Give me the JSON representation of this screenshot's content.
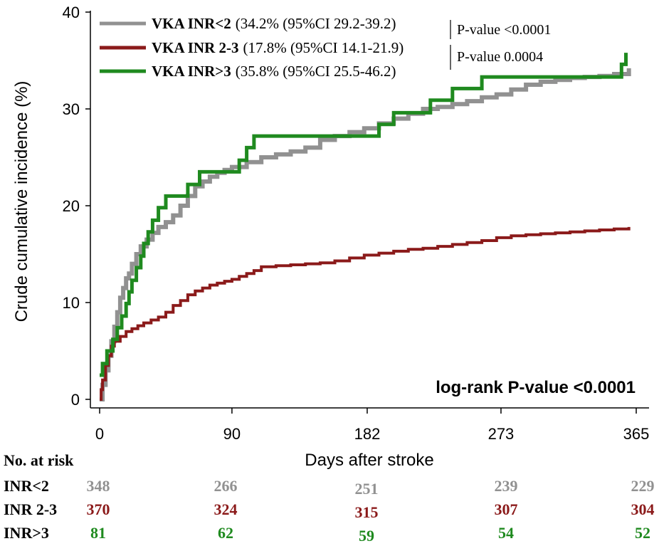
{
  "chart_data": {
    "type": "line",
    "step": true,
    "xlabel": "Days after stroke",
    "ylabel": "Crude cumulative incidence (%)",
    "xlim": [
      0,
      365
    ],
    "ylim": [
      0,
      40
    ],
    "x_ticks": [
      0,
      90,
      182,
      273,
      365
    ],
    "y_ticks": [
      0,
      10,
      20,
      30,
      40
    ],
    "annotation": "log-rank P-value <0.0001",
    "legend_position": "top-left",
    "series": [
      {
        "name": "VKA INR<2",
        "detail": "(34.2% (95%CI 29.2-39.2)",
        "color": "#919191",
        "x": [
          0,
          2,
          4,
          6,
          8,
          10,
          12,
          14,
          16,
          18,
          20,
          22,
          25,
          28,
          32,
          36,
          40,
          45,
          50,
          55,
          60,
          65,
          70,
          75,
          80,
          85,
          90,
          100,
          110,
          120,
          130,
          140,
          150,
          160,
          170,
          180,
          190,
          200,
          210,
          220,
          230,
          240,
          250,
          260,
          270,
          280,
          290,
          300,
          310,
          320,
          330,
          340,
          350,
          360
        ],
        "values": [
          0,
          1.5,
          3,
          4.5,
          6,
          7.5,
          9,
          10.5,
          11.5,
          12.5,
          13,
          14,
          15,
          15.8,
          16.5,
          17.2,
          17.8,
          18.3,
          19,
          20,
          21,
          22,
          22.5,
          23,
          23.4,
          23.7,
          24,
          24.5,
          25,
          25.3,
          25.6,
          26,
          26.8,
          27.2,
          27.6,
          28,
          28.5,
          29,
          29.5,
          30,
          30.2,
          30.5,
          30.8,
          31.2,
          31.5,
          32,
          32.5,
          32.8,
          33,
          33.2,
          33.3,
          33.4,
          33.6,
          34.2
        ]
      },
      {
        "name": "VKA INR 2-3",
        "detail": "(17.8% (95%CI 14.1-21.9)",
        "color": "#8b1a1a",
        "x": [
          0,
          1,
          2,
          4,
          6,
          8,
          10,
          14,
          18,
          22,
          26,
          30,
          35,
          40,
          45,
          50,
          55,
          60,
          65,
          70,
          75,
          80,
          85,
          90,
          95,
          100,
          105,
          110,
          120,
          130,
          140,
          150,
          160,
          170,
          180,
          190,
          200,
          210,
          220,
          230,
          240,
          250,
          260,
          270,
          280,
          290,
          300,
          310,
          320,
          330,
          340,
          350,
          360
        ],
        "values": [
          0,
          1,
          2,
          3.5,
          4.5,
          5.5,
          6,
          6.5,
          7,
          7.3,
          7.6,
          7.9,
          8.2,
          8.5,
          9,
          9.7,
          10.2,
          10.8,
          11.2,
          11.5,
          11.8,
          12,
          12.2,
          12.4,
          12.7,
          13,
          13.3,
          13.7,
          13.8,
          13.9,
          14,
          14.1,
          14.3,
          14.6,
          14.9,
          15.1,
          15.3,
          15.5,
          15.6,
          15.8,
          16,
          16.2,
          16.4,
          16.7,
          16.9,
          17,
          17.1,
          17.2,
          17.3,
          17.4,
          17.5,
          17.6,
          17.8
        ]
      },
      {
        "name": "VKA INR>3",
        "detail": "(35.8% (95%CI 25.5-46.2)",
        "color": "#1f8a1f",
        "x": [
          0,
          2,
          5,
          9,
          12,
          15,
          18,
          20,
          22,
          25,
          28,
          30,
          33,
          36,
          40,
          45,
          52,
          60,
          68,
          75,
          85,
          95,
          100,
          105,
          110,
          115,
          140,
          160,
          180,
          190,
          200,
          205,
          215,
          225,
          240,
          250,
          260,
          280,
          300,
          320,
          340,
          350,
          355,
          358
        ],
        "values": [
          2.5,
          3.7,
          5,
          6.2,
          7.4,
          8.6,
          9.9,
          11.1,
          12.3,
          13.6,
          14.8,
          16.1,
          17.3,
          18.5,
          19.8,
          21,
          21,
          22.2,
          23.5,
          23.5,
          23.5,
          24.7,
          26,
          27.2,
          27.2,
          27.2,
          27.2,
          27.2,
          27.2,
          28.4,
          29.6,
          29.6,
          29.6,
          30.9,
          32.1,
          32.1,
          33.3,
          33.3,
          33.3,
          33.3,
          33.3,
          33.3,
          34.6,
          35.8
        ]
      }
    ],
    "pvalues": [
      "P-value <0.0001",
      "P-value 0.0004"
    ]
  },
  "risk_table": {
    "header": "No. at risk",
    "rows": [
      {
        "label": "INR<2",
        "color": "#919191",
        "values": [
          "348",
          "266",
          "251",
          "239",
          "229"
        ]
      },
      {
        "label": "INR 2-3",
        "color": "#8b1a1a",
        "values": [
          "370",
          "324",
          "315",
          "307",
          "304"
        ]
      },
      {
        "label": "INR>3",
        "color": "#1f8a1f",
        "values": [
          "81",
          "62",
          "59",
          "54",
          "52"
        ]
      }
    ]
  }
}
